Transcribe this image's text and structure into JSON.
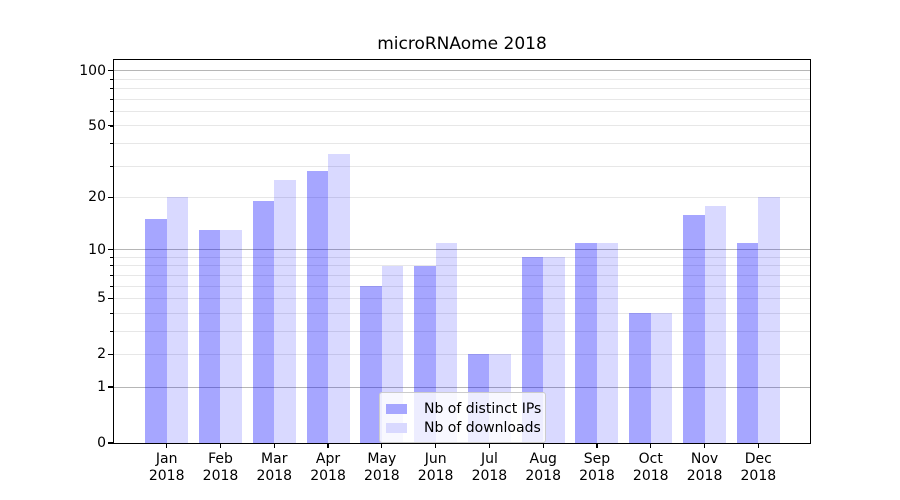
{
  "chart_data": {
    "type": "bar",
    "title": "microRNAome 2018",
    "categories": [
      "Jan",
      "Feb",
      "Mar",
      "Apr",
      "May",
      "Jun",
      "Jul",
      "Aug",
      "Sep",
      "Oct",
      "Nov",
      "Dec"
    ],
    "year": "2018",
    "series": [
      {
        "name": "Nb of distinct IPs",
        "color": "rgba(0,0,255,0.35)",
        "color_hex": "#a6a6ff",
        "values": [
          15,
          13,
          19,
          28,
          6,
          8,
          2,
          9,
          11,
          4,
          16,
          11
        ]
      },
      {
        "name": "Nb of downloads",
        "color": "rgba(0,0,255,0.15)",
        "color_hex": "#d9d9ff",
        "values": [
          20,
          13,
          25,
          35,
          8,
          11,
          2,
          9,
          11,
          4,
          18,
          20
        ]
      }
    ],
    "xlabel": "",
    "ylabel": "",
    "y_axis": {
      "scale": "log1p",
      "ylim": [
        0,
        114
      ],
      "ticks": [
        0,
        1,
        2,
        5,
        10,
        20,
        50,
        100
      ],
      "major_grid": [
        1,
        10,
        100
      ],
      "minor_grid": [
        2,
        3,
        4,
        5,
        6,
        7,
        8,
        9,
        20,
        30,
        40,
        50,
        60,
        70,
        80,
        90
      ]
    },
    "grid": true,
    "legend_position": "lower center"
  },
  "colors": {
    "grid_major": "#b6b6b6",
    "grid_minor": "#e7e7e7",
    "spine": "#000000",
    "background": "#ffffff"
  }
}
